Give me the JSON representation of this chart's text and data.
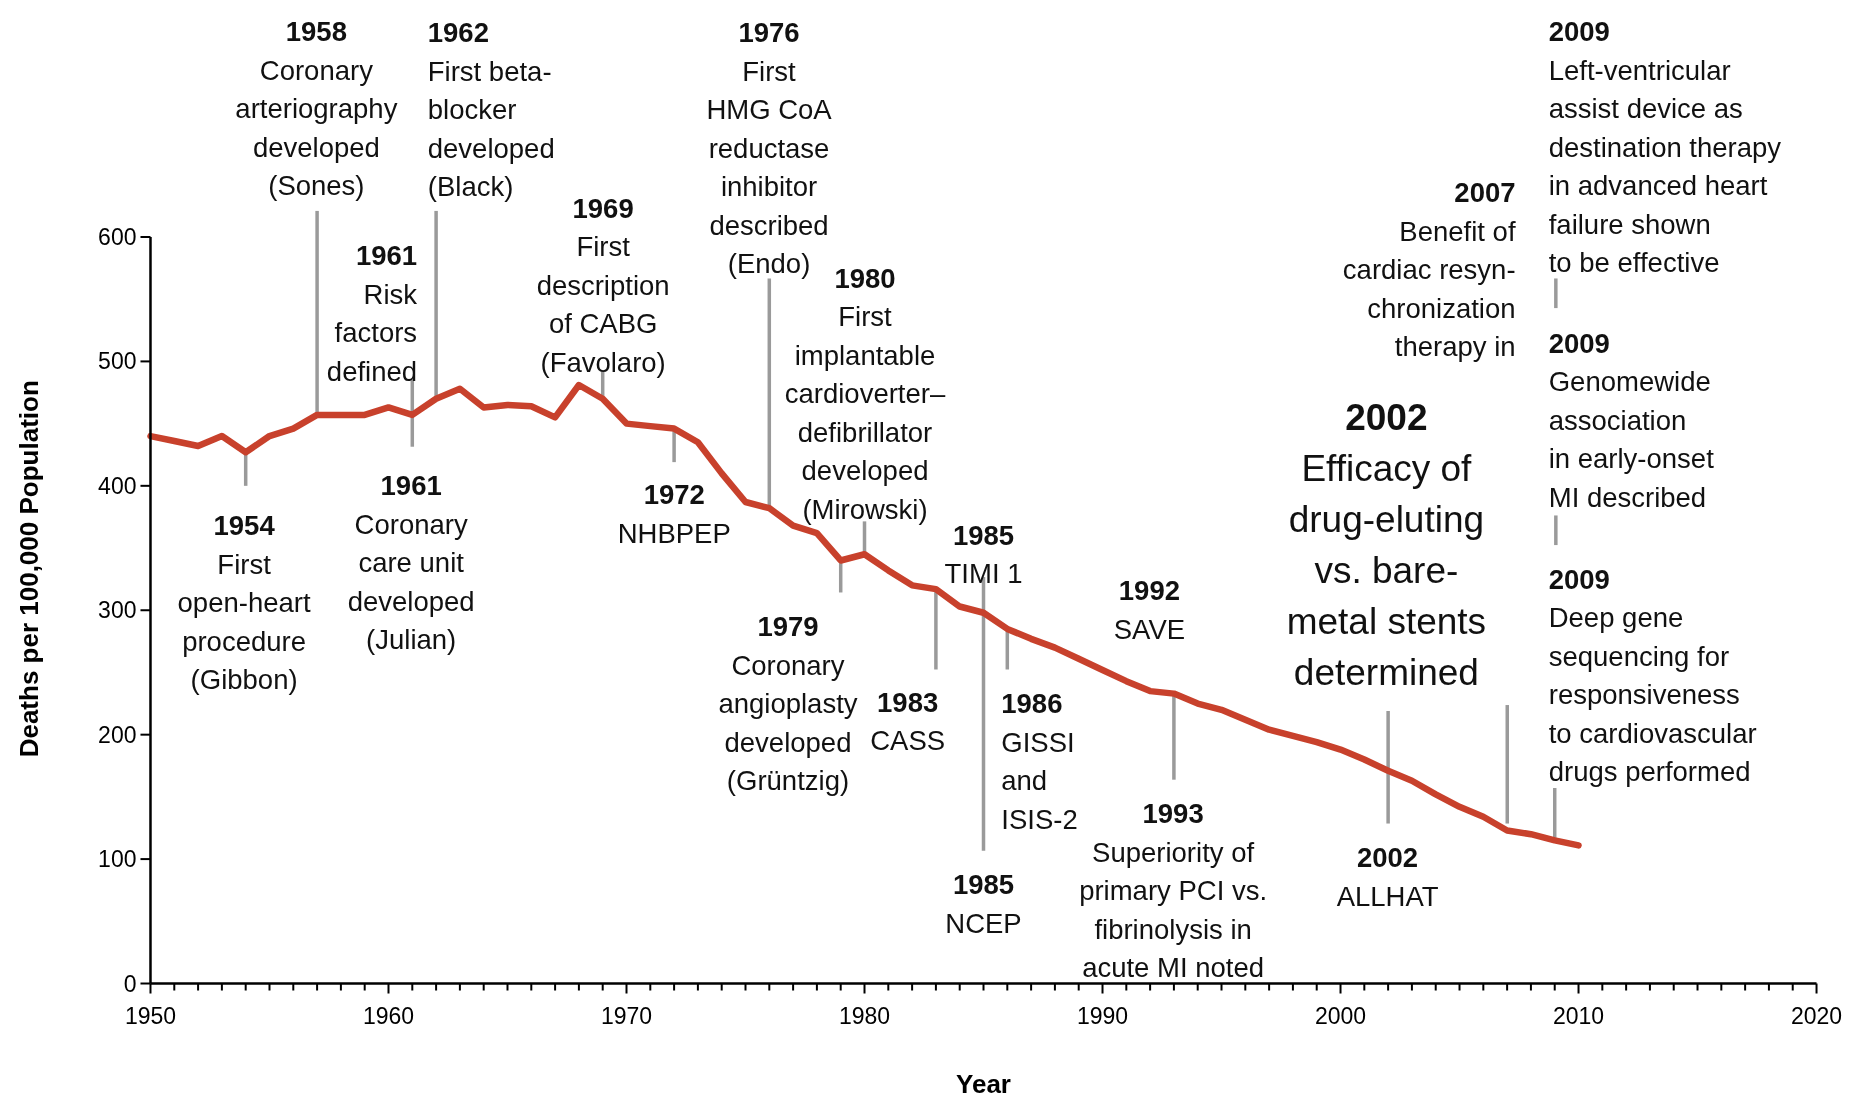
{
  "chart_data": {
    "type": "line",
    "xlabel": "Year",
    "ylabel": "Deaths per 100,000 Population",
    "x": [
      1950,
      1951,
      1952,
      1953,
      1954,
      1955,
      1956,
      1957,
      1958,
      1959,
      1960,
      1961,
      1962,
      1963,
      1964,
      1965,
      1966,
      1967,
      1968,
      1969,
      1970,
      1971,
      1972,
      1973,
      1974,
      1975,
      1976,
      1977,
      1978,
      1979,
      1980,
      1981,
      1982,
      1983,
      1984,
      1985,
      1986,
      1987,
      1988,
      1989,
      1990,
      1991,
      1992,
      1993,
      1994,
      1995,
      1996,
      1997,
      1998,
      1999,
      2000,
      2001,
      2002,
      2003,
      2004,
      2005,
      2006,
      2007,
      2008,
      2009,
      2010
    ],
    "series": [
      {
        "color": "#c8412c",
        "values": [
          440,
          436,
          432,
          440,
          427,
          440,
          446,
          457,
          457,
          457,
          463,
          457,
          470,
          478,
          463,
          465,
          464,
          455,
          481,
          470,
          450,
          448,
          446,
          435,
          410,
          387,
          382,
          368,
          362,
          340,
          345,
          332,
          320,
          317,
          303,
          298,
          285,
          277,
          270,
          261,
          252,
          243,
          235,
          233,
          225,
          220,
          212,
          204,
          199,
          194,
          188,
          180,
          171,
          163,
          152,
          142,
          134,
          123,
          120,
          115,
          111
        ]
      }
    ],
    "xlim": [
      1950,
      2020
    ],
    "ylim": [
      0,
      600
    ],
    "xticks": [
      1950,
      {
        "value": 1951,
        "label": null
      },
      {
        "value": 1952,
        "label": null
      },
      {
        "value": 1953,
        "label": null
      },
      {
        "value": 1954,
        "label": null
      },
      {
        "value": 1955,
        "label": null
      },
      {
        "value": 1956,
        "label": null
      },
      {
        "value": 1957,
        "label": null
      },
      {
        "value": 1958,
        "label": null
      },
      {
        "value": 1959,
        "label": null
      },
      1960,
      {
        "value": 1961,
        "label": null
      },
      {
        "value": 1962,
        "label": null
      },
      {
        "value": 1963,
        "label": null
      },
      {
        "value": 1964,
        "label": null
      },
      {
        "value": 1965,
        "label": null
      },
      {
        "value": 1966,
        "label": null
      },
      {
        "value": 1967,
        "label": null
      },
      {
        "value": 1968,
        "label": null
      },
      {
        "value": 1969,
        "label": null
      },
      1970,
      {
        "value": 1971,
        "label": null
      },
      {
        "value": 1972,
        "label": null
      },
      {
        "value": 1973,
        "label": null
      },
      {
        "value": 1974,
        "label": null
      },
      {
        "value": 1975,
        "label": null
      },
      {
        "value": 1976,
        "label": null
      },
      {
        "value": 1977,
        "label": null
      },
      {
        "value": 1978,
        "label": null
      },
      {
        "value": 1979,
        "label": null
      },
      1980,
      {
        "value": 1981,
        "label": null
      },
      {
        "value": 1982,
        "label": null
      },
      {
        "value": 1983,
        "label": null
      },
      {
        "value": 1984,
        "label": null
      },
      {
        "value": 1985,
        "label": null
      },
      {
        "value": 1986,
        "label": null
      },
      {
        "value": 1987,
        "label": null
      },
      {
        "value": 1988,
        "label": null
      },
      {
        "value": 1989,
        "label": null
      },
      1990,
      {
        "value": 1991,
        "label": null
      },
      {
        "value": 1992,
        "label": null
      },
      {
        "value": 1993,
        "label": null
      },
      {
        "value": 1994,
        "label": null
      },
      {
        "value": 1995,
        "label": null
      },
      {
        "value": 1996,
        "label": null
      },
      {
        "value": 1997,
        "label": null
      },
      {
        "value": 1998,
        "label": null
      },
      {
        "value": 1999,
        "label": null
      },
      2000,
      {
        "value": 2001,
        "label": null
      },
      {
        "value": 2002,
        "label": null
      },
      {
        "value": 2003,
        "label": null
      },
      {
        "value": 2004,
        "label": null
      },
      {
        "value": 2005,
        "label": null
      },
      {
        "value": 2006,
        "label": null
      },
      {
        "value": 2007,
        "label": null
      },
      {
        "value": 2008,
        "label": null
      },
      {
        "value": 2009,
        "label": null
      },
      2010,
      {
        "value": 2011,
        "label": null
      },
      {
        "value": 2012,
        "label": null
      },
      {
        "value": 2013,
        "label": null
      },
      {
        "value": 2014,
        "label": null
      },
      {
        "value": 2015,
        "label": null
      },
      {
        "value": 2016,
        "label": null
      },
      {
        "value": 2017,
        "label": null
      },
      {
        "value": 2018,
        "label": null
      },
      {
        "value": 2019,
        "label": null
      },
      2020
    ],
    "yticks": [
      0,
      100,
      200,
      300,
      400,
      500,
      600
    ],
    "annotations": [
      {
        "text": "1954\nFirst\nopen-heart\nprocedure\n(Gibbon)",
        "x": 1954,
        "y": 427
      },
      {
        "text": "1958\nCoronary\narteriography\ndeveloped\n(Sones)",
        "x": 1957,
        "y": 457
      },
      {
        "text": "1961\nRisk\nfactors\ndefined",
        "x": 1961,
        "y": 457
      },
      {
        "text": "1961\nCoronary\ncare unit\ndeveloped\n(Julian)",
        "x": 1961,
        "y": 457
      },
      {
        "text": "1962\nFirst beta-\nblocker\ndeveloped\n(Black)",
        "x": 1962,
        "y": 470
      },
      {
        "text": "1969\nFirst\ndescription\nof CABG\n(Favolaro)",
        "x": 1969,
        "y": 470
      },
      {
        "text": "1972\nNHBPEP",
        "x": 1972,
        "y": 446
      },
      {
        "text": "1976\nFirst\nHMG CoA\nreductase\ninhibitor\ndescribed\n(Endo)",
        "x": 1976,
        "y": 382
      },
      {
        "text": "1980\nFirst\nimplantable\ncardioverter–\ndefibrillator\ndeveloped\n(Mirowski)",
        "x": 1980,
        "y": 345
      },
      {
        "text": "1979\nCoronary\nangioplasty\ndeveloped\n(Grüntzig)",
        "x": 1979,
        "y": 340
      },
      {
        "text": "1985\nTIMI 1",
        "x": 1985,
        "y": 298
      },
      {
        "text": "1985\nNCEP",
        "x": 1985,
        "y": 298
      },
      {
        "text": "1983\nCASS",
        "x": 1983,
        "y": 317
      },
      {
        "text": "1986\nGISSI\nand\nISIS-2",
        "x": 1986,
        "y": 285
      },
      {
        "text": "1992\nSAVE",
        "x": 1992,
        "y": 235
      },
      {
        "text": "1993\nSuperiority of\nprimary PCI vs.\nfibrinolysis in\nacute MI noted",
        "x": 1993,
        "y": 233
      },
      {
        "text": "2002\nALLHAT",
        "x": 2002,
        "y": 171
      },
      {
        "text": "2002\nEfficacy of\ndrug-eluting\nvs. bare-\nmetal stents\ndetermined",
        "x": 2002,
        "y": 171
      },
      "2007\nBenefit of\ncardiac resyn-\nchronization\ntherapy in",
      "2009\nLeft-ventricular\nassist device as\ndestination therapy\nin advanced heart\nfailure shown\nto be effective",
      "2009\nGenomewide\nassociation\nin early-onset\nMI described",
      {
        "text": "2009\nDeep gene\nsequencing for\nresponsiveness\nto cardiovascular\ndrugs performed",
        "x": 2009,
        "y": 115
      }
    ]
  }
}
